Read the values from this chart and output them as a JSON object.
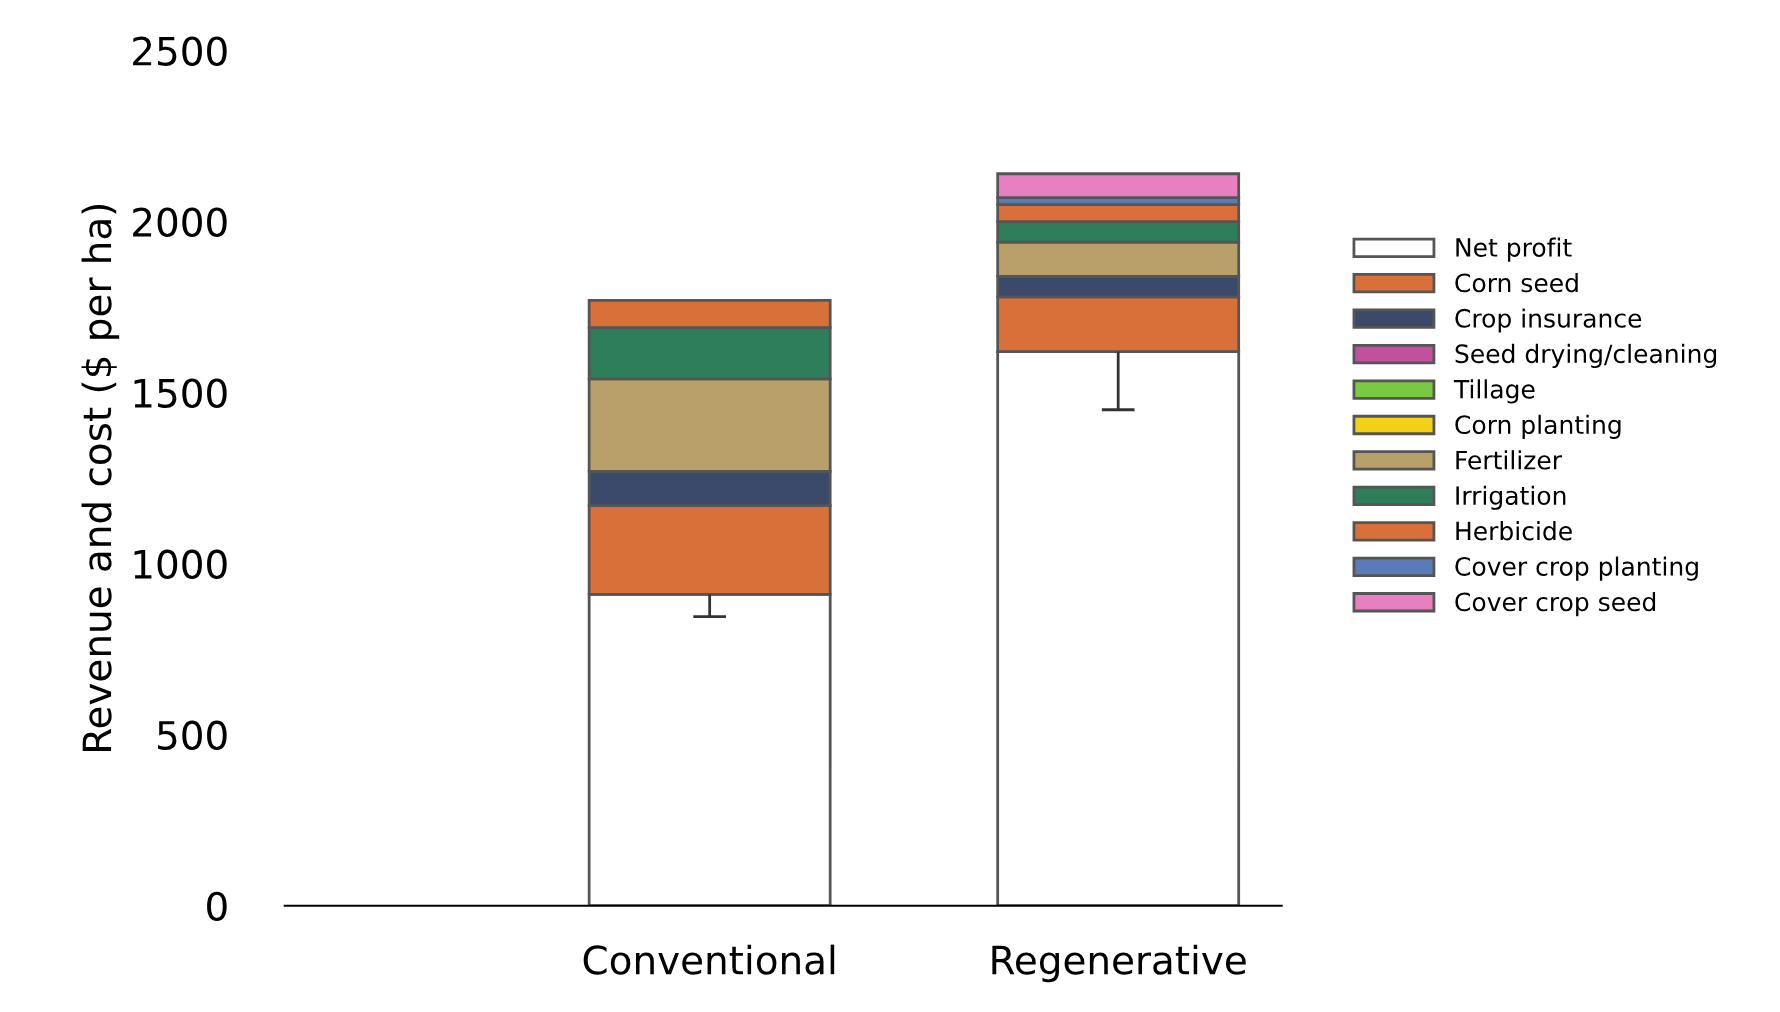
{
  "chart_data": {
    "type": "bar",
    "stacked": true,
    "ylabel": "Revenue and cost ($ per ha)",
    "categories": [
      "Conventional",
      "Regenerative"
    ],
    "ylim": [
      0,
      2500
    ],
    "yticks": [
      0,
      500,
      1000,
      1500,
      2000,
      2500
    ],
    "grid": false,
    "legend": "right",
    "series": [
      {
        "name": "Net profit",
        "color": "#ffffff",
        "values": [
          910,
          1620
        ],
        "errors": [
          [
            845,
            910
          ],
          [
            1450,
            1620
          ]
        ]
      },
      {
        "name": "Corn seed",
        "color": "#d9703a",
        "values": [
          260,
          160
        ]
      },
      {
        "name": "Crop insurance",
        "color": "#3b4a6b",
        "values": [
          100,
          60
        ]
      },
      {
        "name": "Seed drying/cleaning",
        "color": "#c2509e",
        "values": [
          null,
          null
        ]
      },
      {
        "name": "Tillage",
        "color": "#7ac943",
        "values": [
          null,
          null
        ]
      },
      {
        "name": "Corn planting",
        "color": "#f2d016",
        "values": [
          null,
          null
        ]
      },
      {
        "name": "Fertilizer",
        "color": "#b9a06a",
        "values": [
          270,
          100
        ]
      },
      {
        "name": "Irrigation",
        "color": "#2e7d5b",
        "values": [
          150,
          60
        ]
      },
      {
        "name": "Herbicide",
        "color": "#d9703a",
        "values": [
          80,
          50
        ]
      },
      {
        "name": "Cover crop planting",
        "color": "#5a7ab8",
        "values": [
          null,
          20
        ]
      },
      {
        "name": "Cover crop seed",
        "color": "#e77fc0",
        "values": [
          null,
          70
        ]
      }
    ]
  }
}
